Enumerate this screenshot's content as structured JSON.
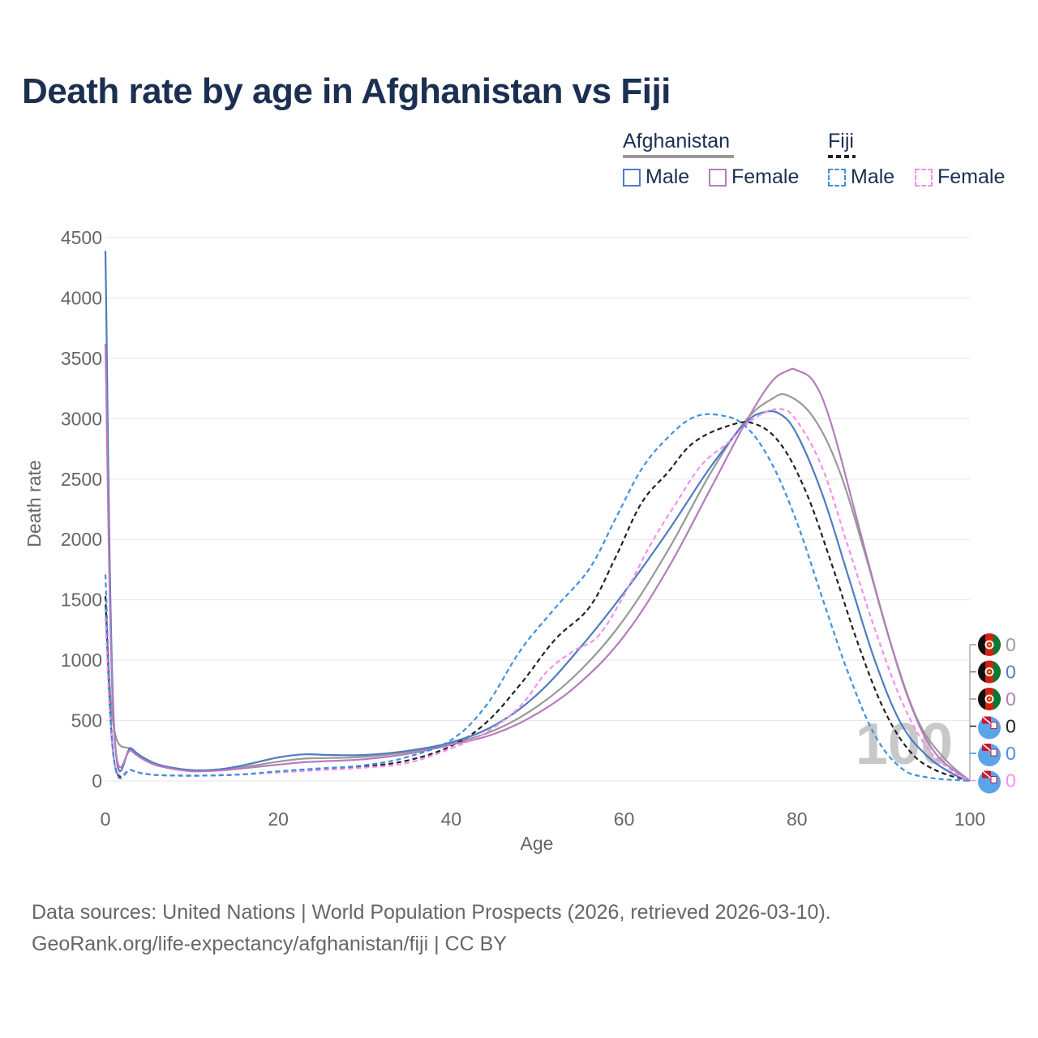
{
  "title": "Death rate by age in Afghanistan vs Fiji",
  "legend": {
    "groups": [
      {
        "name": "Afghanistan",
        "color": "#999999",
        "dash": false,
        "items": [
          {
            "label": "Male",
            "color": "#4f7cc0"
          },
          {
            "label": "Female",
            "color": "#b57cbd"
          }
        ]
      },
      {
        "name": "Fiji",
        "color": "#222222",
        "dash": true,
        "items": [
          {
            "label": "Male",
            "color": "#4090e0"
          },
          {
            "label": "Female",
            "color": "#f48ff0"
          }
        ]
      }
    ]
  },
  "source": {
    "line1": "Data sources: United Nations | World Population Prospects (2026, retrieved 2026-03-10).",
    "line2": "GeoRank.org/life-expectancy/afghanistan/fiji | CC BY"
  },
  "year_label": "100",
  "end_labels": [
    {
      "value": "0",
      "country": "Afghanistan",
      "flag": "afghanistan",
      "color": "#999999"
    },
    {
      "value": "0",
      "country": "Afghanistan",
      "flag": "afghanistan",
      "color": "#4f7cc0"
    },
    {
      "value": "0",
      "country": "Afghanistan",
      "flag": "afghanistan",
      "color": "#b57cbd"
    },
    {
      "value": "0",
      "country": "Fiji",
      "flag": "fiji",
      "color": "#222222"
    },
    {
      "value": "0",
      "country": "Fiji",
      "flag": "fiji",
      "color": "#4090e0"
    },
    {
      "value": "0",
      "country": "Fiji",
      "flag": "fiji",
      "color": "#f48ff0"
    }
  ],
  "chart_data": {
    "type": "line",
    "title": "Death rate by age in Afghanistan vs Fiji",
    "xlabel": "Age",
    "ylabel": "Death rate",
    "xlim": [
      0,
      100
    ],
    "ylim": [
      0,
      4500
    ],
    "xticks": [
      0,
      20,
      40,
      60,
      80,
      100
    ],
    "yticks": [
      0,
      500,
      1000,
      1500,
      2000,
      2500,
      3000,
      3500,
      4000,
      4500
    ],
    "grid": true,
    "series": [
      {
        "name": "Afghanistan (total)",
        "color": "#999999",
        "dash": false,
        "x": [
          0,
          1,
          3,
          5,
          7,
          10,
          13,
          16,
          20,
          23,
          26,
          30,
          35,
          40,
          45,
          50,
          55,
          60,
          65,
          70,
          74,
          77,
          79,
          82,
          85,
          88,
          91,
          94,
          97,
          100
        ],
        "y": [
          1450,
          430,
          260,
          160,
          115,
          85,
          90,
          115,
          160,
          185,
          190,
          200,
          240,
          310,
          420,
          620,
          920,
          1340,
          1900,
          2550,
          2980,
          3160,
          3190,
          3000,
          2550,
          1850,
          1100,
          500,
          190,
          0
        ]
      },
      {
        "name": "Afghanistan Male",
        "color": "#4f7cc0",
        "dash": false,
        "x": [
          0,
          1,
          3,
          5,
          7,
          10,
          13,
          16,
          20,
          23,
          26,
          30,
          35,
          40,
          45,
          50,
          55,
          60,
          65,
          70,
          74,
          76,
          78,
          80,
          83,
          86,
          89,
          92,
          95,
          98,
          100
        ],
        "y": [
          4390,
          450,
          270,
          170,
          120,
          90,
          95,
          130,
          195,
          220,
          215,
          215,
          250,
          320,
          460,
          720,
          1110,
          1560,
          2060,
          2600,
          2960,
          3050,
          3040,
          2870,
          2360,
          1680,
          1000,
          480,
          210,
          60,
          0
        ]
      },
      {
        "name": "Afghanistan Female",
        "color": "#b57cbd",
        "dash": false,
        "x": [
          0,
          1,
          3,
          5,
          7,
          10,
          13,
          16,
          20,
          23,
          26,
          30,
          35,
          40,
          45,
          50,
          55,
          60,
          65,
          70,
          74,
          77,
          79,
          80,
          82,
          84,
          87,
          90,
          93,
          96,
          100
        ],
        "y": [
          3620,
          420,
          250,
          155,
          110,
          80,
          85,
          105,
          135,
          155,
          165,
          180,
          225,
          300,
          390,
          560,
          820,
          1200,
          1750,
          2420,
          2960,
          3300,
          3400,
          3400,
          3300,
          2950,
          2150,
          1350,
          660,
          230,
          0
        ]
      },
      {
        "name": "Fiji (total)",
        "color": "#222222",
        "dash": true,
        "x": [
          0,
          1,
          3,
          5,
          8,
          12,
          16,
          20,
          25,
          30,
          35,
          40,
          44,
          48,
          52,
          56,
          59,
          62,
          65,
          68,
          72,
          75,
          78,
          81,
          84,
          87,
          90,
          93,
          96,
          100
        ],
        "y": [
          1530,
          170,
          90,
          55,
          45,
          45,
          55,
          75,
          100,
          120,
          170,
          290,
          480,
          800,
          1170,
          1440,
          1850,
          2300,
          2550,
          2800,
          2940,
          2960,
          2800,
          2400,
          1800,
          1150,
          600,
          250,
          90,
          0
        ]
      },
      {
        "name": "Fiji Male",
        "color": "#4090e0",
        "dash": true,
        "x": [
          0,
          1,
          3,
          5,
          8,
          12,
          16,
          20,
          25,
          30,
          35,
          40,
          44,
          48,
          52,
          56,
          59,
          62,
          65,
          68,
          71,
          74,
          77,
          80,
          83,
          86,
          89,
          92,
          95,
          100
        ],
        "y": [
          1710,
          170,
          90,
          55,
          45,
          45,
          55,
          80,
          105,
          130,
          200,
          340,
          620,
          1080,
          1430,
          1760,
          2170,
          2580,
          2840,
          3010,
          3030,
          2940,
          2640,
          2140,
          1500,
          880,
          380,
          110,
          30,
          0
        ]
      },
      {
        "name": "Fiji Female",
        "color": "#f48ff0",
        "dash": true,
        "x": [
          0,
          1,
          3,
          5,
          8,
          12,
          16,
          20,
          25,
          30,
          35,
          40,
          44,
          48,
          51,
          54,
          57,
          60,
          63,
          66,
          69,
          72,
          75,
          78,
          80,
          83,
          86,
          89,
          92,
          95,
          98,
          100
        ],
        "y": [
          1350,
          170,
          90,
          55,
          45,
          45,
          55,
          70,
          90,
          110,
          150,
          270,
          400,
          620,
          900,
          1070,
          1200,
          1540,
          1950,
          2300,
          2620,
          2800,
          3000,
          3080,
          2980,
          2580,
          1920,
          1260,
          680,
          280,
          80,
          0
        ]
      }
    ]
  }
}
